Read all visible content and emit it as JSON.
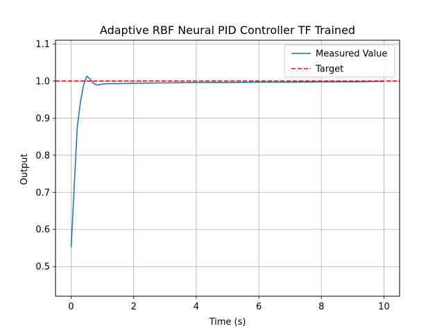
{
  "chart_data": {
    "type": "line",
    "title": "Adaptive RBF Neural PID Controller TF Trained",
    "xlabel": "Time (s)",
    "ylabel": "Output",
    "xlim": [
      -0.5,
      10.5
    ],
    "ylim": [
      0.42,
      1.11
    ],
    "xticks": [
      0,
      2,
      4,
      6,
      8,
      10
    ],
    "xtick_labels": [
      "0",
      "2",
      "4",
      "6",
      "8",
      "10"
    ],
    "yticks": [
      0.5,
      0.6,
      0.7,
      0.8,
      0.9,
      1.0,
      1.1
    ],
    "ytick_labels": [
      "0.5",
      "0.6",
      "0.7",
      "0.8",
      "0.9",
      "1.0",
      "1.1"
    ],
    "grid": true,
    "legend": {
      "position": "upper right"
    },
    "series": [
      {
        "name": "Measured Value",
        "color": "#1f77b4",
        "style": "solid",
        "x": [
          0,
          0.1,
          0.2,
          0.3,
          0.4,
          0.5,
          0.6,
          0.7,
          0.8,
          0.9,
          1.0,
          1.2,
          1.5,
          2,
          3,
          4,
          5,
          6,
          7,
          8,
          9,
          10
        ],
        "y": [
          0.552,
          0.72,
          0.88,
          0.945,
          0.99,
          1.013,
          1.006,
          0.995,
          0.99,
          0.99,
          0.992,
          0.993,
          0.993,
          0.994,
          0.995,
          0.996,
          0.996,
          0.997,
          0.997,
          0.998,
          0.998,
          0.999
        ]
      },
      {
        "name": "Target",
        "color": "#ff0000",
        "style": "dashed",
        "hline": 1.0
      }
    ]
  }
}
